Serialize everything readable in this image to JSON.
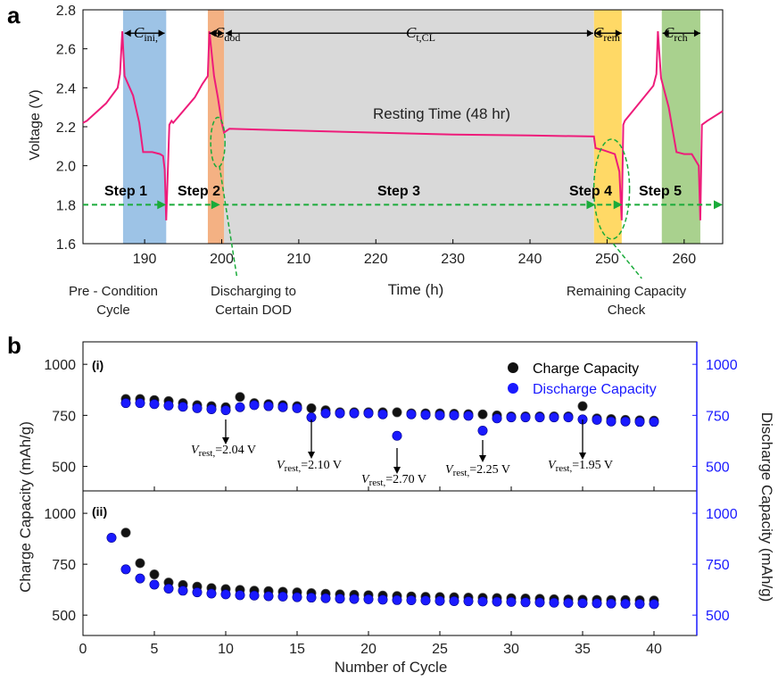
{
  "colors": {
    "curve": "#ee1c7a",
    "step_arrow": "#1aab3a",
    "rest_region": "#d9d9d9",
    "c_ini_region": "#9dc3e6",
    "c_dod_region": "#f4b183",
    "c_rem_region": "#ffd966",
    "c_rch_region": "#a9d18e",
    "charge_marker": "#111111",
    "discharge_marker": "#1a1aff",
    "right_axis": "#1a1aff"
  },
  "panel_a": {
    "letter": "a",
    "ylabel": "Voltage (V)",
    "xlabel": "Time (h)",
    "x_ticks": [
      "190",
      "200",
      "210",
      "220",
      "230",
      "240",
      "250",
      "260"
    ],
    "y_ticks": [
      "1.6",
      "1.8",
      "2.0",
      "2.2",
      "2.4",
      "2.6",
      "2.8"
    ],
    "resting_label": "Resting Time (48 hr)",
    "regions": [
      {
        "key": "c_ini",
        "main": "C",
        "sub": "ini,"
      },
      {
        "key": "c_dod",
        "main": "C",
        "sub": "dod"
      },
      {
        "key": "c_tcl",
        "main": "C",
        "sub": "t,CL"
      },
      {
        "key": "c_rem",
        "main": "C",
        "sub": "rem"
      },
      {
        "key": "c_rch",
        "main": "C",
        "sub": "rch"
      }
    ],
    "steps": [
      "Step 1",
      "Step 2",
      "Step 3",
      "Step 4",
      "Step 5"
    ],
    "notes": {
      "precondition_l1": "Pre - Condition",
      "precondition_l2": "Cycle",
      "dod_l1": "Discharging to",
      "dod_l2": "Certain DOD",
      "rem_l1": "Remaining Capacity",
      "rem_l2": "Check"
    }
  },
  "panel_b": {
    "letter": "b",
    "xlabel": "Number of Cycle",
    "ylabel_left": "Charge Capacity (mAh/g)",
    "ylabel_right": "Discharge Capacity (mAh/g)",
    "x_ticks": [
      "0",
      "5",
      "10",
      "15",
      "20",
      "25",
      "30",
      "35",
      "40"
    ],
    "y_ticks": [
      "500",
      "750",
      "1000"
    ],
    "sub_i": "(i)",
    "sub_ii": "(ii)",
    "legend": {
      "charge": "Charge Capacity",
      "discharge": "Discharge Capacity"
    },
    "vrest_labels": [
      {
        "v": "V",
        "sub": "rest,",
        "val": "=2.04 V"
      },
      {
        "v": "V",
        "sub": "rest,",
        "val": "=2.10 V"
      },
      {
        "v": "V",
        "sub": "rest,",
        "val": "=2.70 V"
      },
      {
        "v": "V",
        "sub": "rest,",
        "val": "=2.25 V"
      },
      {
        "v": "V",
        "sub": "rest,",
        "val": "=1.95 V"
      }
    ]
  },
  "chart_data": [
    {
      "type": "line",
      "xlabel": "Time (h)",
      "ylabel": "Voltage (V)",
      "xlim": [
        182,
        265
      ],
      "ylim": [
        1.6,
        2.8
      ],
      "x": [
        182,
        182.5,
        185,
        186.5,
        186.8,
        187.1,
        187.4,
        188.5,
        189.3,
        189.8,
        191,
        192,
        192.4,
        192.6,
        192.8,
        193.2,
        193.5,
        193.7,
        196.5,
        197.5,
        198.2,
        198.4,
        199,
        199.5,
        200,
        200.3,
        201,
        205,
        210,
        220,
        230,
        240,
        248.3,
        248.5,
        249.5,
        251,
        251.6,
        251.9,
        252.1,
        252.3,
        256,
        256.4,
        256.6,
        257,
        258,
        259,
        260,
        261,
        261.9,
        262.1,
        262.3,
        263,
        265
      ],
      "y": [
        2.22,
        2.23,
        2.32,
        2.4,
        2.47,
        2.69,
        2.46,
        2.36,
        2.22,
        2.07,
        2.07,
        2.06,
        2.05,
        1.98,
        1.72,
        2.21,
        2.23,
        2.22,
        2.35,
        2.42,
        2.46,
        2.69,
        2.46,
        2.35,
        2.22,
        2.17,
        2.19,
        2.185,
        2.18,
        2.17,
        2.16,
        2.155,
        2.15,
        2.09,
        2.08,
        2.06,
        1.97,
        1.72,
        2.21,
        2.23,
        2.41,
        2.47,
        2.69,
        2.45,
        2.3,
        2.07,
        2.06,
        2.06,
        2.0,
        1.72,
        2.21,
        2.23,
        2.28
      ]
    },
    {
      "type": "scatter",
      "xlabel": "Number of Cycle",
      "ylabel": "Charge Capacity (mAh/g)",
      "ylabel_right": "Discharge Capacity (mAh/g)",
      "xlim": [
        0,
        43
      ],
      "ylim": [
        380,
        1110
      ],
      "series": [
        {
          "name": "Charge Capacity",
          "x": [
            3,
            4,
            5,
            6,
            7,
            8,
            9,
            10,
            11,
            12,
            13,
            14,
            15,
            16,
            17,
            18,
            19,
            20,
            21,
            22,
            23,
            24,
            25,
            26,
            27,
            28,
            29,
            30,
            31,
            32,
            33,
            34,
            35,
            36,
            37,
            38,
            39,
            40
          ],
          "values": [
            830,
            830,
            825,
            820,
            810,
            800,
            795,
            790,
            840,
            810,
            805,
            800,
            795,
            785,
            775,
            765,
            765,
            765,
            765,
            765,
            760,
            760,
            760,
            758,
            756,
            755,
            750,
            745,
            745,
            745,
            745,
            745,
            795,
            735,
            732,
            728,
            726,
            724
          ]
        },
        {
          "name": "Discharge Capacity",
          "x": [
            3,
            4,
            5,
            6,
            7,
            8,
            9,
            10,
            11,
            12,
            13,
            14,
            15,
            16,
            17,
            18,
            19,
            20,
            21,
            22,
            23,
            24,
            25,
            26,
            27,
            28,
            29,
            30,
            31,
            32,
            33,
            34,
            35,
            36,
            37,
            38,
            39,
            40
          ],
          "values": [
            810,
            810,
            805,
            798,
            792,
            785,
            780,
            775,
            790,
            800,
            795,
            790,
            785,
            740,
            760,
            760,
            760,
            760,
            755,
            650,
            755,
            752,
            750,
            750,
            748,
            675,
            735,
            740,
            740,
            740,
            740,
            740,
            730,
            728,
            720,
            720,
            718,
            718
          ]
        }
      ]
    },
    {
      "type": "scatter",
      "xlabel": "Number of Cycle",
      "ylabel": "Charge Capacity (mAh/g)",
      "ylabel_right": "Discharge Capacity (mAh/g)",
      "xlim": [
        0,
        43
      ],
      "ylim": [
        400,
        1110
      ],
      "series": [
        {
          "name": "Charge Capacity",
          "x": [
            3,
            4,
            5,
            6,
            7,
            8,
            9,
            10,
            11,
            12,
            13,
            14,
            15,
            16,
            17,
            18,
            19,
            20,
            21,
            22,
            23,
            24,
            25,
            26,
            27,
            28,
            29,
            30,
            31,
            32,
            33,
            34,
            35,
            36,
            37,
            38,
            39,
            40
          ],
          "values": [
            905,
            755,
            700,
            660,
            648,
            640,
            633,
            628,
            624,
            620,
            618,
            615,
            612,
            608,
            605,
            602,
            600,
            598,
            596,
            594,
            592,
            590,
            589,
            588,
            586,
            585,
            584,
            583,
            582,
            580,
            578,
            577,
            576,
            575,
            574,
            574,
            573,
            572
          ]
        },
        {
          "name": "Discharge Capacity",
          "x": [
            2,
            3,
            4,
            5,
            6,
            7,
            8,
            9,
            10,
            11,
            12,
            13,
            14,
            15,
            16,
            17,
            18,
            19,
            20,
            21,
            22,
            23,
            24,
            25,
            26,
            27,
            28,
            29,
            30,
            31,
            32,
            33,
            34,
            35,
            36,
            37,
            38,
            39,
            40
          ],
          "values": [
            880,
            725,
            680,
            650,
            630,
            620,
            612,
            606,
            602,
            598,
            596,
            593,
            591,
            588,
            586,
            583,
            581,
            579,
            578,
            576,
            574,
            573,
            572,
            570,
            569,
            568,
            567,
            566,
            565,
            563,
            562,
            561,
            560,
            559,
            558,
            557,
            556,
            555,
            554
          ]
        }
      ]
    }
  ]
}
